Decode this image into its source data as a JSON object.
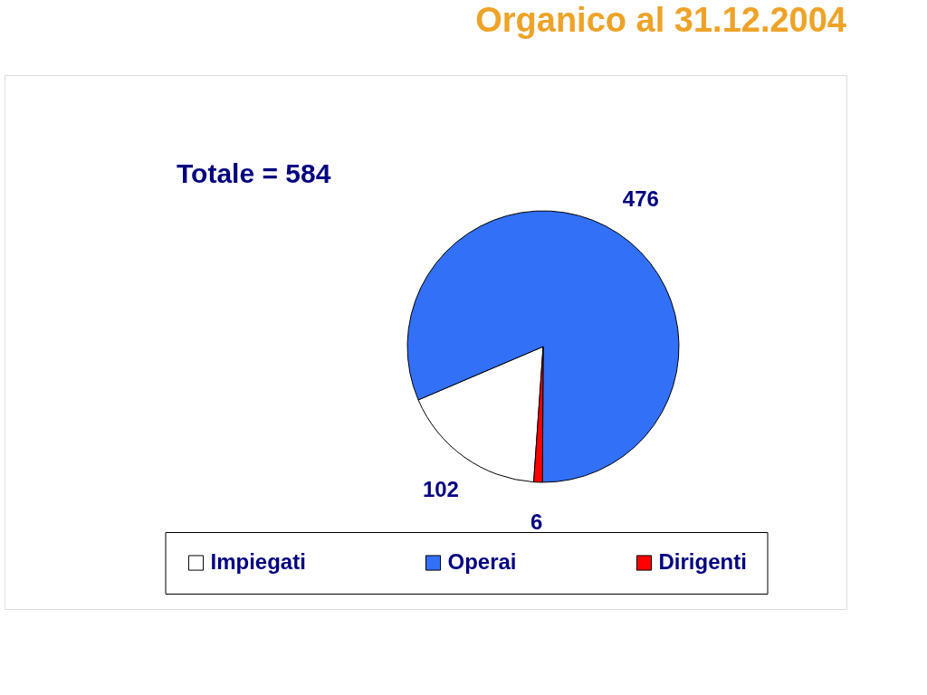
{
  "chart_data": {
    "type": "pie",
    "title": "Organico al 31.12.2004",
    "subtitle": "Totale = 584",
    "categories": [
      "Impiegati",
      "Operai",
      "Dirigenti"
    ],
    "values": [
      102,
      476,
      6
    ],
    "colors": [
      "#ffffff",
      "#3370f8",
      "#ff0000"
    ],
    "data_labels": true,
    "legend": "bottom"
  }
}
